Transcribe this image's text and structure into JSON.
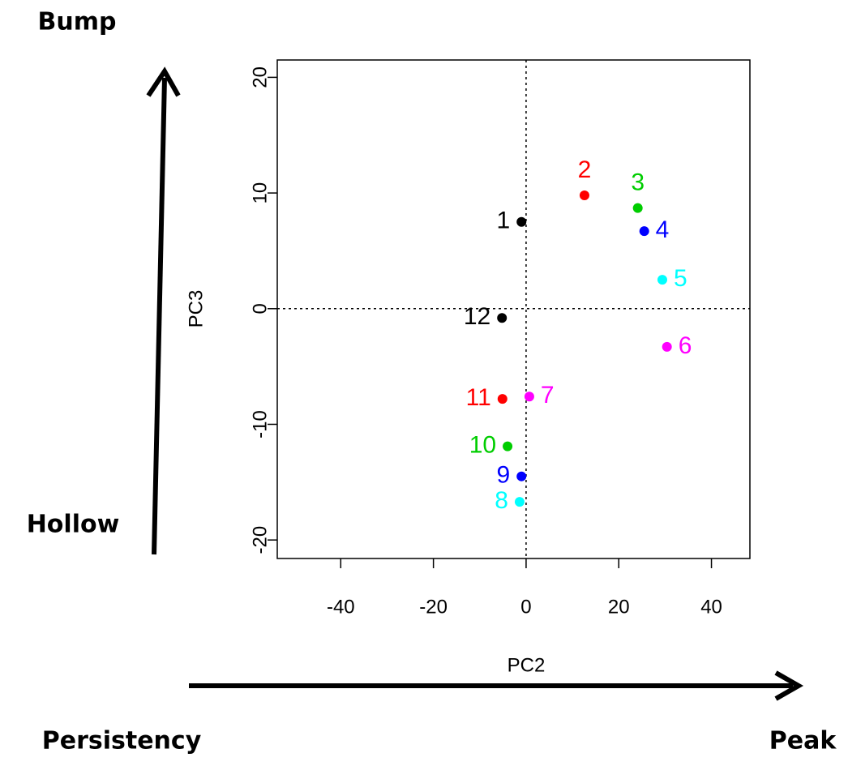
{
  "chart_data": {
    "type": "scatter",
    "x_label": "PC2",
    "y_label": "PC3",
    "labels": [
      "1",
      "2",
      "3",
      "4",
      "5",
      "6",
      "7",
      "8",
      "9",
      "10",
      "11",
      "12"
    ],
    "x": [
      -1.0,
      12.6,
      24.1,
      25.5,
      29.4,
      30.4,
      0.7,
      -1.4,
      -1.0,
      -4.0,
      -5.1,
      -5.2
    ],
    "y": [
      7.5,
      9.8,
      8.7,
      6.7,
      2.5,
      -3.3,
      -7.6,
      -16.7,
      -14.5,
      -11.9,
      -7.8,
      -0.8
    ],
    "colors": [
      "#000000",
      "#ff0000",
      "#00cd00",
      "#0000ff",
      "#00ffff",
      "#ff00ff",
      "#ff00ff",
      "#00ffff",
      "#0000ff",
      "#00cd00",
      "#ff0000",
      "#000000"
    ],
    "xlim": [
      -53.7,
      48.3
    ],
    "ylim": [
      -21.6,
      21.5
    ],
    "xticks": [
      -40,
      -20,
      0,
      20,
      40
    ],
    "yticks": [
      -20,
      -10,
      0,
      10,
      20
    ],
    "hline": 0,
    "vline": 0,
    "annotations": {
      "top": "Bump",
      "bottom_left": "Hollow",
      "x_left": "Persistency",
      "x_right": "Peak"
    }
  }
}
